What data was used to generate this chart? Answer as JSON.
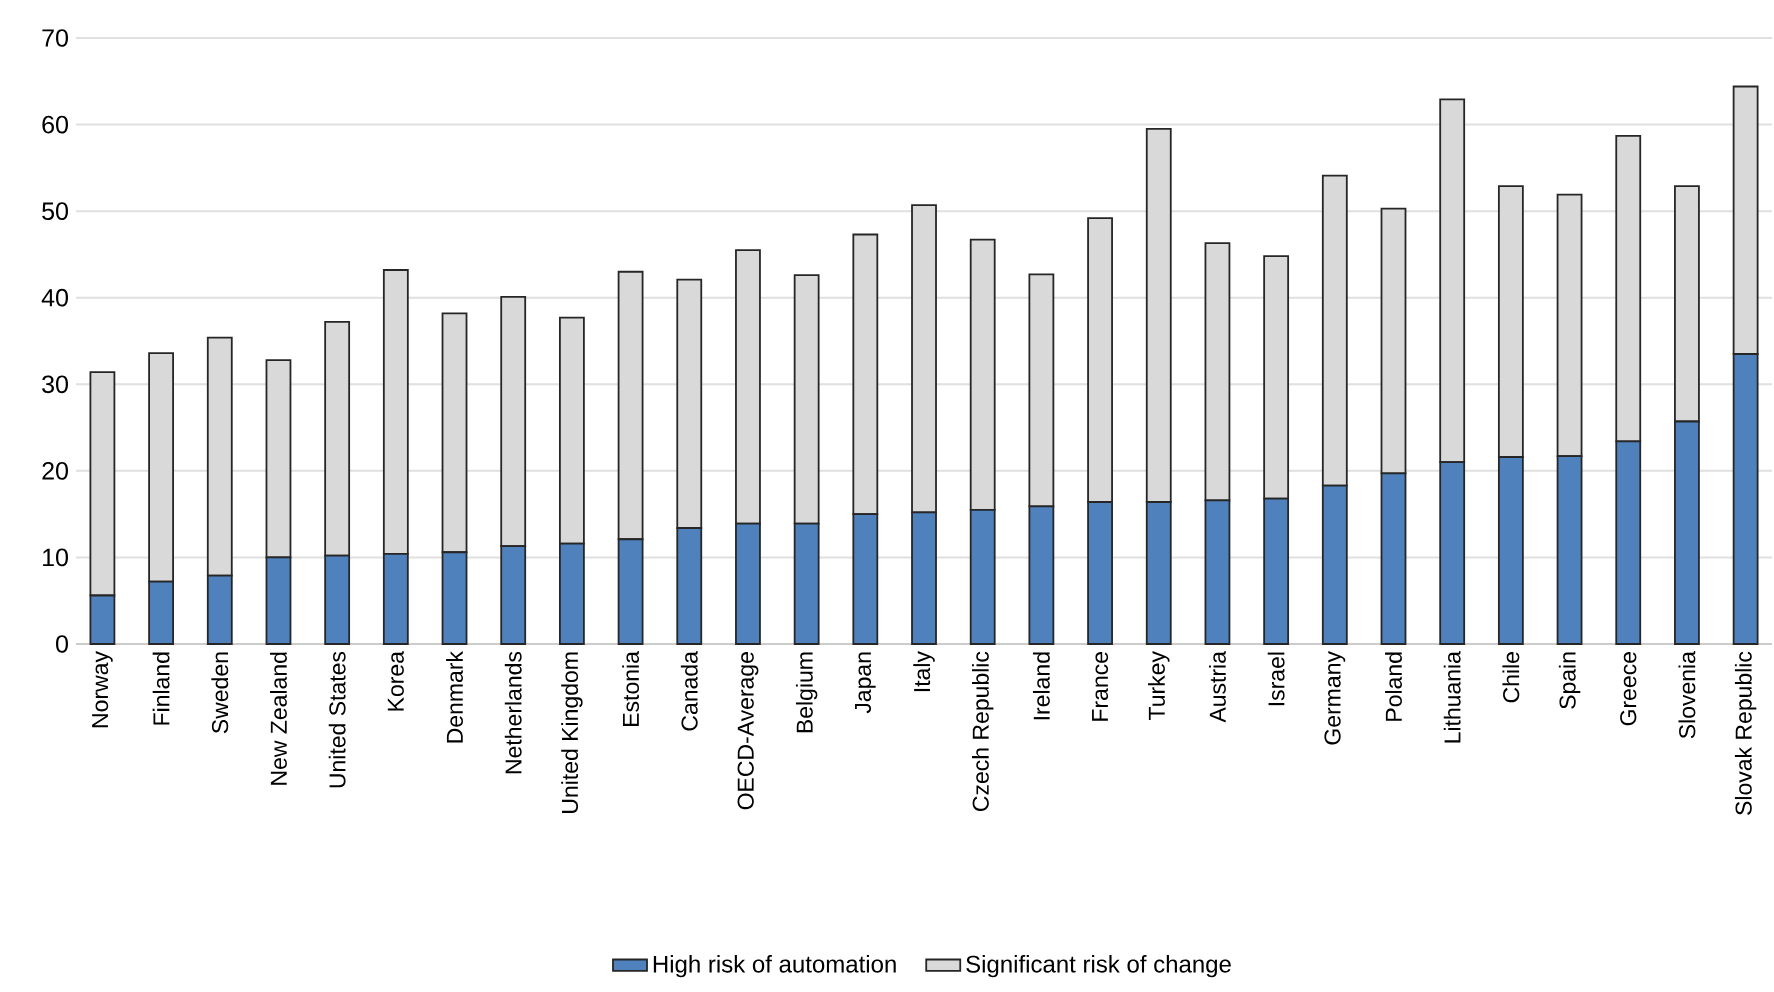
{
  "chart_data": {
    "type": "bar",
    "stacked": true,
    "categories": [
      "Norway",
      "Finland",
      "Sweden",
      "New Zealand",
      "United States",
      "Korea",
      "Denmark",
      "Netherlands",
      "United Kingdom",
      "Estonia",
      "Canada",
      "OECD-Average",
      "Belgium",
      "Japan",
      "Italy",
      "Czech Republic",
      "Ireland",
      "France",
      "Turkey",
      "Austria",
      "Israel",
      "Germany",
      "Poland",
      "Lithuania",
      "Chile",
      "Spain",
      "Greece",
      "Slovenia",
      "Slovak Republic"
    ],
    "series": [
      {
        "name": "High risk of automation",
        "color": "#4f81bd",
        "values": [
          5.6,
          7.2,
          7.9,
          10.0,
          10.2,
          10.4,
          10.6,
          11.3,
          11.6,
          12.1,
          13.4,
          13.9,
          13.9,
          15.0,
          15.2,
          15.5,
          15.9,
          16.4,
          16.4,
          16.6,
          16.8,
          18.3,
          19.7,
          21.0,
          21.6,
          21.7,
          23.4,
          25.7,
          33.5
        ]
      },
      {
        "name": "Significant risk of change",
        "color": "#d9d9d9",
        "values": [
          25.8,
          26.4,
          27.5,
          22.8,
          27.0,
          32.8,
          27.6,
          28.8,
          26.1,
          30.9,
          28.7,
          31.6,
          28.7,
          32.3,
          35.5,
          31.2,
          26.8,
          32.8,
          43.1,
          29.7,
          28.0,
          35.8,
          30.6,
          41.9,
          31.3,
          30.2,
          35.3,
          27.2,
          30.9
        ]
      }
    ],
    "ylim": [
      0,
      70
    ],
    "yticks": [
      0,
      10,
      20,
      30,
      40,
      50,
      60,
      70
    ],
    "grid": "y",
    "legend": "bottom"
  }
}
